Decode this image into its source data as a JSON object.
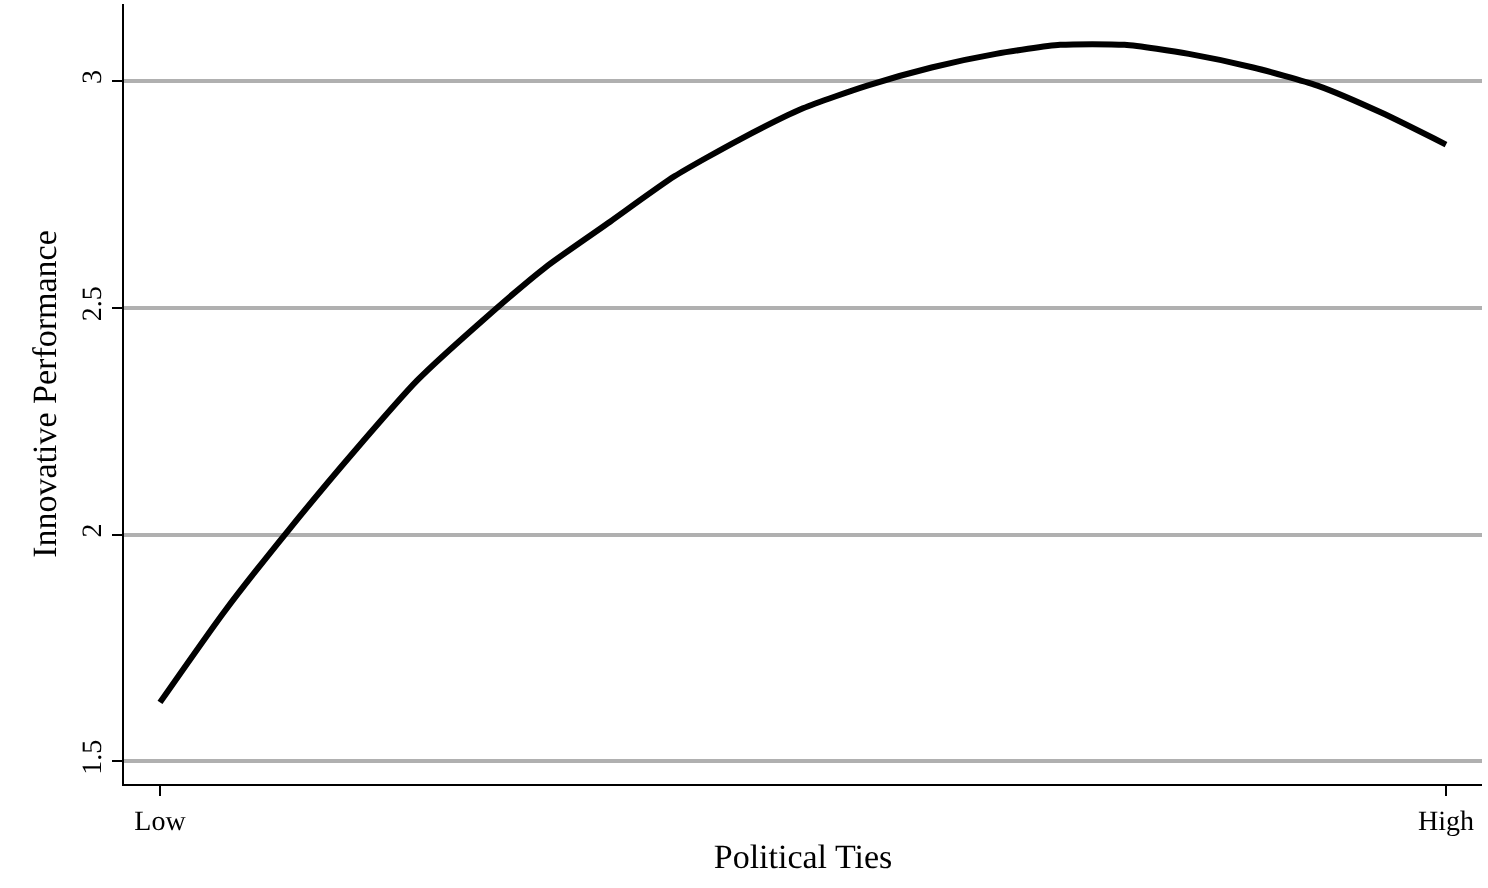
{
  "chart_data": {
    "type": "line",
    "xlabel": "Political Ties",
    "ylabel": "Innovative Performance",
    "categories": [
      "Low",
      null,
      null,
      null,
      null,
      null,
      null,
      null,
      null,
      null,
      null,
      null,
      null,
      null,
      null,
      null,
      null,
      null,
      null,
      null,
      "High"
    ],
    "series": [
      {
        "color": "#000000",
        "values": [
          1.63,
          1.83,
          2.01,
          2.18,
          2.34,
          2.47,
          2.59,
          2.69,
          2.79,
          2.87,
          2.94,
          2.99,
          3.03,
          3.06,
          3.08,
          3.08,
          3.06,
          3.03,
          2.99,
          2.93,
          2.86
        ]
      }
    ],
    "ylim": [
      1.45,
      3.17
    ],
    "yticks": [
      1.5,
      2,
      2.5,
      3
    ],
    "grid": "y",
    "legend": false,
    "marker": "none",
    "line_style": "solid"
  }
}
